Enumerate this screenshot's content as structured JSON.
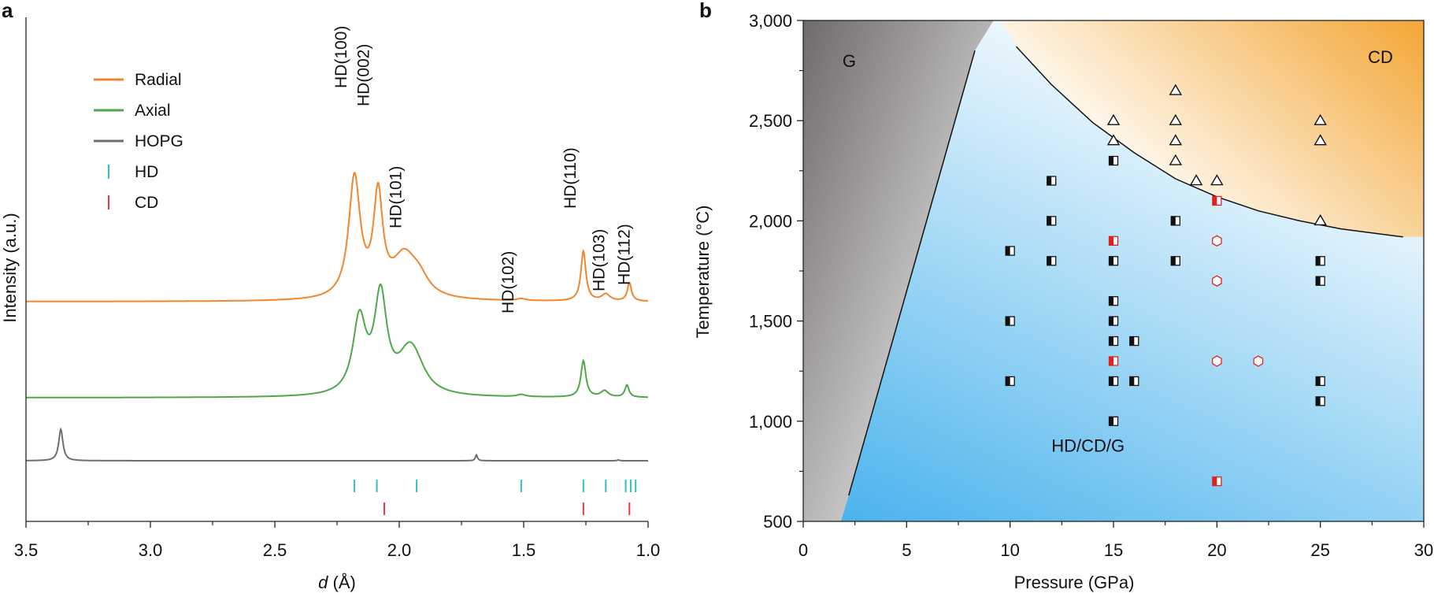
{
  "figure": {
    "panel_a_letter": "a",
    "panel_b_letter": "b"
  },
  "chart_data": [
    {
      "type": "line",
      "panel": "a",
      "xlabel_italic": "d",
      "xlabel_rest": " (Å)",
      "ylabel": "Intensity (a.u.)",
      "xlim": [
        3.5,
        1.0
      ],
      "x_reversed": true,
      "xticks": [
        3.5,
        3.0,
        2.5,
        2.0,
        1.5,
        1.0
      ],
      "xtick_labels": [
        "3.5",
        "3.0",
        "2.5",
        "2.0",
        "1.5",
        "1.0"
      ],
      "legend_position": "top-left",
      "series": [
        {
          "name": "Radial",
          "color": "#f0862e",
          "baseline": 0.5,
          "peaks": [
            {
              "d": 2.18,
              "height": 4.95,
              "width": 0.028
            },
            {
              "d": 2.085,
              "height": 4.05,
              "width": 0.022
            },
            {
              "d": 1.98,
              "height": 1.7,
              "width": 0.06
            },
            {
              "d": 1.92,
              "height": 0.6,
              "width": 0.045
            },
            {
              "d": 1.51,
              "height": 0.08,
              "width": 0.02
            },
            {
              "d": 1.26,
              "height": 2.05,
              "width": 0.012
            },
            {
              "d": 1.17,
              "height": 0.28,
              "width": 0.02
            },
            {
              "d": 1.075,
              "height": 0.75,
              "width": 0.01
            }
          ]
        },
        {
          "name": "Axial",
          "color": "#4ea84a",
          "baseline": 0.5,
          "peaks": [
            {
              "d": 2.16,
              "height": 3.05,
              "width": 0.032
            },
            {
              "d": 2.075,
              "height": 3.95,
              "width": 0.03
            },
            {
              "d": 1.96,
              "height": 1.6,
              "width": 0.055
            },
            {
              "d": 1.93,
              "height": 0.5,
              "width": 0.05
            },
            {
              "d": 1.51,
              "height": 0.09,
              "width": 0.02
            },
            {
              "d": 1.26,
              "height": 1.5,
              "width": 0.012
            },
            {
              "d": 1.175,
              "height": 0.26,
              "width": 0.018
            },
            {
              "d": 1.085,
              "height": 0.5,
              "width": 0.01
            }
          ]
        },
        {
          "name": "HOPG",
          "color": "#6e6e6e",
          "baseline": 0.5,
          "peaks": [
            {
              "d": 3.36,
              "height": 1.3,
              "width": 0.01
            },
            {
              "d": 1.69,
              "height": 0.24,
              "width": 0.005
            },
            {
              "d": 1.12,
              "height": 0.04,
              "width": 0.004
            }
          ]
        }
      ],
      "reference_markers": [
        {
          "name": "HD",
          "color": "#2fc0c4",
          "positions": [
            2.18,
            2.09,
            1.93,
            1.51,
            1.26,
            1.17,
            1.09,
            1.07,
            1.05
          ]
        },
        {
          "name": "CD",
          "color": "#e53b3b",
          "positions": [
            2.06,
            1.26,
            1.075
          ]
        }
      ],
      "peak_labels": [
        {
          "text": "HD(100)",
          "d": 2.18
        },
        {
          "text": "HD(002)",
          "d": 2.09
        },
        {
          "text": "HD(101)",
          "d": 1.96
        },
        {
          "text": "HD(102)",
          "d": 1.51
        },
        {
          "text": "HD(110)",
          "d": 1.26
        },
        {
          "text": "HD(103)",
          "d": 1.17
        },
        {
          "text": "HD(112)",
          "d": 1.08
        }
      ]
    },
    {
      "type": "scatter",
      "panel": "b",
      "xlabel": "Pressure (GPa)",
      "ylabel": "Temperature (°C)",
      "xlim": [
        0,
        30
      ],
      "ylim": [
        500,
        3000
      ],
      "xticks": [
        0,
        5,
        10,
        15,
        20,
        25,
        30
      ],
      "xtick_labels": [
        "0",
        "5",
        "10",
        "15",
        "20",
        "25",
        "30"
      ],
      "yticks": [
        500,
        1000,
        1500,
        2000,
        2500,
        3000
      ],
      "ytick_labels": [
        "500",
        "1,000",
        "1,500",
        "2,000",
        "2,500",
        "3,000"
      ],
      "regions": [
        {
          "label": "G",
          "color": "#6f6a6b"
        },
        {
          "label": "CD",
          "color": "#f3a635"
        },
        {
          "label": "HD/CD/G",
          "color": "#45b1ec"
        }
      ],
      "region_label_positions": [
        {
          "label": "G",
          "p": 1.9,
          "t": 2800
        },
        {
          "label": "CD",
          "p": 27.3,
          "t": 2820
        },
        {
          "label": "HD/CD/G",
          "p": 12.0,
          "t": 880
        }
      ],
      "boundary_g": {
        "points": [
          [
            2.2,
            630
          ],
          [
            8.3,
            2850
          ]
        ]
      },
      "boundary_cd": {
        "points": [
          [
            10.3,
            2870
          ],
          [
            12,
            2680
          ],
          [
            14,
            2490
          ],
          [
            16,
            2340
          ],
          [
            18,
            2210
          ],
          [
            20,
            2120
          ],
          [
            22,
            2050
          ],
          [
            24,
            2000
          ],
          [
            26,
            1960
          ],
          [
            29,
            1920
          ]
        ]
      },
      "series": [
        {
          "name": "triangle",
          "marker": "triangle",
          "color": "#111111",
          "points": [
            [
              15,
              2500
            ],
            [
              15,
              2400
            ],
            [
              18,
              2650
            ],
            [
              18,
              2500
            ],
            [
              18,
              2400
            ],
            [
              18,
              2300
            ],
            [
              19,
              2200
            ],
            [
              20,
              2200
            ],
            [
              25,
              2500
            ],
            [
              25,
              2400
            ],
            [
              25,
              2000
            ]
          ]
        },
        {
          "name": "half-square",
          "marker": "half-square",
          "color": "#111111",
          "points": [
            [
              15,
              2300
            ],
            [
              12,
              2200
            ],
            [
              12,
              2000
            ],
            [
              18,
              2000
            ],
            [
              10,
              1850
            ],
            [
              12,
              1800
            ],
            [
              15,
              1800
            ],
            [
              18,
              1800
            ],
            [
              25,
              1800
            ],
            [
              25,
              1700
            ],
            [
              15,
              1600
            ],
            [
              10,
              1500
            ],
            [
              15,
              1500
            ],
            [
              15,
              1400
            ],
            [
              16,
              1400
            ],
            [
              10,
              1200
            ],
            [
              15,
              1200
            ],
            [
              16,
              1200
            ],
            [
              25,
              1200
            ],
            [
              25,
              1100
            ],
            [
              15,
              1000
            ]
          ]
        },
        {
          "name": "half-square-red",
          "marker": "half-square",
          "color": "#e0221f",
          "points": [
            [
              20,
              2100
            ],
            [
              15,
              1900
            ],
            [
              15,
              1300
            ],
            [
              20,
              700
            ]
          ]
        },
        {
          "name": "hexagon",
          "marker": "hexagon",
          "color": "#e0221f",
          "points": [
            [
              20,
              1900
            ],
            [
              20,
              1700
            ],
            [
              20,
              1300
            ],
            [
              22,
              1300
            ]
          ]
        }
      ]
    }
  ]
}
